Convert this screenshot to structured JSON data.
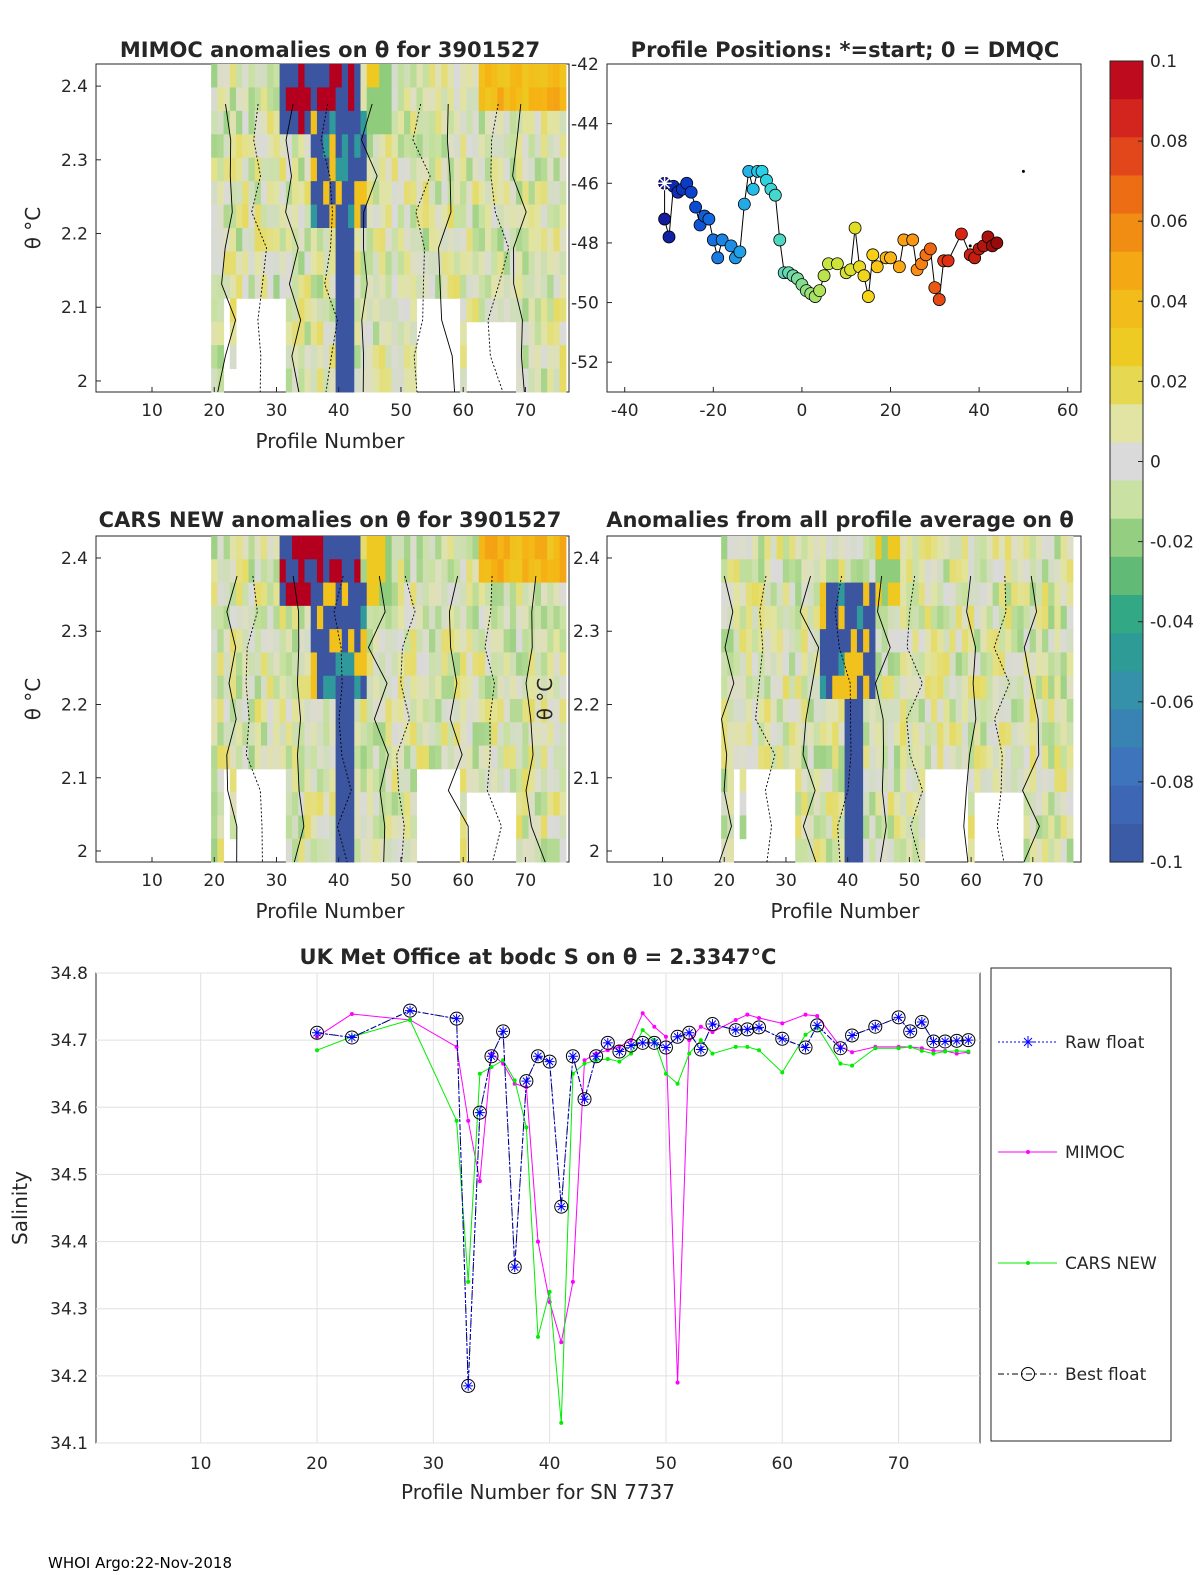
{
  "footer": "WHOI Argo:22-Nov-2018",
  "colorbar": {
    "ticks": [
      "0.1",
      "0.08",
      "0.06",
      "0.04",
      "0.02",
      "0",
      "-0.02",
      "-0.04",
      "-0.06",
      "-0.08",
      "-0.1"
    ],
    "range": [
      -0.1,
      0.1
    ]
  },
  "panels": {
    "p1": {
      "title": "MIMOC anomalies on θ  for 3901527",
      "xlabel": "Profile Number",
      "ylabel": "θ °C",
      "xticks": [
        "10",
        "20",
        "30",
        "40",
        "50",
        "60",
        "70"
      ],
      "yticks": [
        "2.4",
        "2.3",
        "2.2",
        "2.1",
        "2"
      ]
    },
    "p2": {
      "title": "Profile Positions: *=start; 0 = DMQC",
      "xticks": [
        "-40",
        "-20",
        "0",
        "20",
        "40",
        "60"
      ],
      "yticks": [
        "-42",
        "-44",
        "-46",
        "-48",
        "-50",
        "-52"
      ]
    },
    "p3": {
      "title": "CARS NEW anomalies on θ for 3901527",
      "xlabel": "Profile Number",
      "ylabel": "θ °C",
      "xticks": [
        "10",
        "20",
        "30",
        "40",
        "50",
        "60",
        "70"
      ],
      "yticks": [
        "2.4",
        "2.3",
        "2.2",
        "2.1",
        "2"
      ]
    },
    "p4": {
      "title": "Anomalies from all profile average on θ",
      "xlabel": "Profile Number",
      "ylabel": "θ °C",
      "xticks": [
        "10",
        "20",
        "30",
        "40",
        "50",
        "60",
        "70"
      ],
      "yticks": [
        "2.4",
        "2.3",
        "2.2",
        "2.1",
        "2"
      ]
    },
    "p5": {
      "title": "UK Met Office at bodc S on θ = 2.3347°C",
      "xlabel": "Profile Number for SN 7737",
      "ylabel": "Salinity",
      "xticks": [
        "10",
        "20",
        "30",
        "40",
        "50",
        "60",
        "70"
      ],
      "yticks": [
        "34.8",
        "34.7",
        "34.6",
        "34.5",
        "34.4",
        "34.3",
        "34.2",
        "34.1"
      ],
      "legend": [
        "Raw float",
        "MIMOC",
        "CARS NEW",
        "Best float"
      ]
    }
  },
  "chart_data": [
    {
      "type": "line",
      "title": "UK Met Office at bodc S on θ = 2.3347°C",
      "xlabel": "Profile Number for SN 7737",
      "ylabel": "Salinity",
      "xlim": [
        1,
        77
      ],
      "ylim": [
        34.1,
        34.8
      ],
      "x": [
        20,
        23,
        28,
        32,
        33,
        34,
        35,
        36,
        37,
        38,
        39,
        40,
        41,
        42,
        43,
        44,
        45,
        46,
        47,
        48,
        49,
        50,
        51,
        52,
        53,
        54,
        56,
        57,
        58,
        60,
        62,
        63,
        65,
        66,
        68,
        70,
        71,
        72,
        73,
        74,
        75,
        76
      ],
      "series": [
        {
          "name": "Raw float",
          "color": "#0000ff",
          "values": [
            34.711,
            34.704,
            34.744,
            34.732,
            34.185,
            34.592,
            34.676,
            34.713,
            34.362,
            34.639,
            34.676,
            34.668,
            34.452,
            34.676,
            34.612,
            34.676,
            34.696,
            34.683,
            34.692,
            34.696,
            34.696,
            34.689,
            34.705,
            34.711,
            34.686,
            34.724,
            34.715,
            34.716,
            34.719,
            34.702,
            34.689,
            34.722,
            34.688,
            34.707,
            34.72,
            34.734,
            34.713,
            34.727,
            34.698,
            34.698,
            34.699,
            34.7
          ]
        },
        {
          "name": "MIMOC",
          "color": "#ff00ff",
          "values": [
            34.705,
            34.739,
            34.73,
            34.69,
            34.58,
            34.49,
            34.68,
            34.665,
            34.635,
            34.63,
            34.4,
            34.31,
            34.25,
            34.34,
            34.67,
            34.68,
            34.685,
            34.69,
            34.7,
            34.74,
            34.72,
            34.705,
            34.19,
            34.7,
            34.72,
            34.712,
            34.73,
            34.738,
            34.733,
            34.725,
            34.738,
            34.736,
            34.69,
            34.682,
            34.69,
            34.69,
            34.69,
            34.688,
            34.684,
            34.684,
            34.68,
            34.682
          ]
        },
        {
          "name": "CARS NEW",
          "color": "#00ee00",
          "values": [
            34.685,
            34.705,
            34.73,
            34.58,
            34.34,
            34.65,
            34.66,
            34.67,
            34.64,
            34.57,
            34.258,
            34.325,
            34.13,
            34.65,
            34.665,
            34.67,
            34.672,
            34.668,
            34.68,
            34.715,
            34.7,
            34.65,
            34.635,
            34.68,
            34.7,
            34.68,
            34.69,
            34.69,
            34.685,
            34.652,
            34.708,
            34.72,
            34.665,
            34.662,
            34.688,
            34.688,
            34.69,
            34.684,
            34.68,
            34.683,
            34.684,
            34.683
          ]
        },
        {
          "name": "Best float",
          "color": "#000000",
          "values": [
            34.711,
            34.704,
            34.744,
            34.732,
            34.185,
            34.592,
            34.676,
            34.713,
            34.362,
            34.639,
            34.676,
            34.668,
            34.452,
            34.676,
            34.612,
            34.676,
            34.696,
            34.683,
            34.692,
            34.696,
            34.696,
            34.689,
            34.705,
            34.711,
            34.686,
            34.724,
            34.715,
            34.716,
            34.719,
            34.702,
            34.689,
            34.722,
            34.688,
            34.707,
            34.72,
            34.734,
            34.713,
            34.727,
            34.698,
            34.698,
            34.699,
            34.7
          ]
        }
      ]
    },
    {
      "type": "scatter",
      "title": "Profile Positions: *=start; 0 = DMQC",
      "xlim": [
        -44,
        63
      ],
      "ylim": [
        -53,
        -42
      ],
      "positions": [
        [
          -31,
          -46
        ],
        [
          -31,
          -47.2
        ],
        [
          -30,
          -47.8
        ],
        [
          -29,
          -46.1
        ],
        [
          -28,
          -46.3
        ],
        [
          -27,
          -46.2
        ],
        [
          -26,
          -46
        ],
        [
          -25,
          -46.3
        ],
        [
          -24,
          -46.8
        ],
        [
          -23,
          -47.4
        ],
        [
          -22,
          -47.1
        ],
        [
          -21,
          -47.2
        ],
        [
          -20,
          -47.9
        ],
        [
          -19,
          -48.5
        ],
        [
          -18,
          -47.9
        ],
        [
          -16,
          -48.1
        ],
        [
          -15,
          -48.5
        ],
        [
          -14,
          -48.3
        ],
        [
          -13,
          -46.7
        ],
        [
          -12,
          -45.6
        ],
        [
          -11,
          -46.2
        ],
        [
          -10,
          -45.6
        ],
        [
          -9,
          -45.6
        ],
        [
          -8,
          -45.9
        ],
        [
          -7,
          -46.2
        ],
        [
          -6,
          -46.4
        ],
        [
          -5,
          -47.9
        ],
        [
          -4,
          -49
        ],
        [
          -3,
          -49
        ],
        [
          -2,
          -49.1
        ],
        [
          -1,
          -49.2
        ],
        [
          0,
          -49.4
        ],
        [
          1,
          -49.6
        ],
        [
          2,
          -49.7
        ],
        [
          3,
          -49.8
        ],
        [
          4,
          -49.6
        ],
        [
          5,
          -49.1
        ],
        [
          6,
          -48.7
        ],
        [
          8,
          -48.7
        ],
        [
          10,
          -49
        ],
        [
          11,
          -48.9
        ],
        [
          12,
          -47.5
        ],
        [
          13,
          -48.8
        ],
        [
          14,
          -49.1
        ],
        [
          15,
          -49.8
        ],
        [
          16,
          -48.4
        ],
        [
          17,
          -48.8
        ],
        [
          19,
          -48.5
        ],
        [
          20,
          -48.5
        ],
        [
          22,
          -48.8
        ],
        [
          23,
          -47.9
        ],
        [
          25,
          -47.9
        ],
        [
          26,
          -48.9
        ],
        [
          27,
          -48.7
        ],
        [
          28,
          -48.4
        ],
        [
          29,
          -48.2
        ],
        [
          30,
          -49.5
        ],
        [
          31,
          -49.9
        ],
        [
          32,
          -48.6
        ],
        [
          33,
          -48.6
        ],
        [
          36,
          -47.7
        ],
        [
          38,
          -48.4
        ],
        [
          39,
          -48.5
        ],
        [
          40,
          -48.2
        ],
        [
          41,
          -48.1
        ],
        [
          42,
          -47.8
        ],
        [
          43,
          -48.1
        ],
        [
          44,
          -48
        ]
      ],
      "dmqc": [
        [
          38,
          -48.1
        ],
        [
          50,
          -45.6
        ]
      ]
    },
    {
      "type": "heatmap",
      "title": "MIMOC anomalies on θ  for 3901527",
      "xlabel": "Profile Number",
      "ylabel": "θ °C",
      "xlim": [
        1,
        77
      ],
      "ylim": [
        1.98,
        2.43
      ],
      "clim": [
        -0.1,
        0.1
      ]
    },
    {
      "type": "heatmap",
      "title": "CARS NEW anomalies on θ for 3901527",
      "xlabel": "Profile Number",
      "ylabel": "θ °C",
      "xlim": [
        1,
        77
      ],
      "ylim": [
        1.98,
        2.43
      ],
      "clim": [
        -0.1,
        0.1
      ]
    },
    {
      "type": "heatmap",
      "title": "Anomalies from all profile average on θ",
      "xlabel": "Profile Number",
      "ylabel": "θ °C",
      "xlim": [
        1,
        77
      ],
      "ylim": [
        1.98,
        2.43
      ],
      "clim": [
        -0.1,
        0.1
      ]
    }
  ]
}
